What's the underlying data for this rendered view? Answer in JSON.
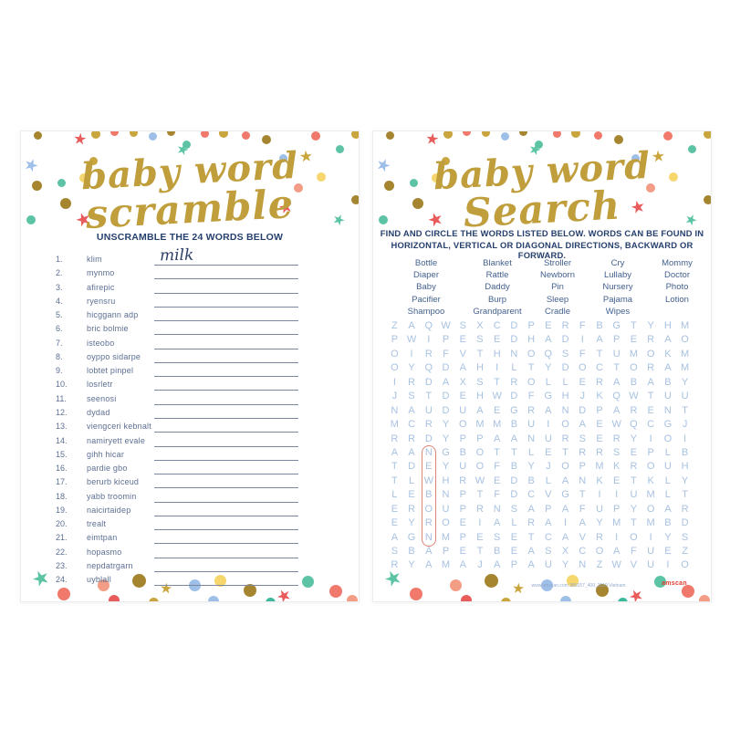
{
  "palette": {
    "gold": "#c9a53e",
    "gold2": "#a5852f",
    "coral": "#f0796b",
    "red": "#e85c5c",
    "salmon": "#f49d86",
    "blue": "#9dbfe8",
    "mint": "#5cc4a4",
    "teal": "#3cb99c",
    "yellow": "#f6d76d"
  },
  "colors": {
    "title_gold": "#bf9e3b",
    "heading_navy": "#26406e",
    "list_text": "#5d6f93",
    "grid_letter": "#a8c2e2",
    "circle_red": "#e0837b",
    "word_list": "#44618f",
    "answer_ink": "#2c3e66",
    "logo_red": "#e23b2e"
  },
  "scramble_card": {
    "title_line1": "baby word",
    "title_line2": "scramble",
    "instructions": "UNSCRAMBLE THE 24 WORDS BELOW",
    "items": [
      {
        "n": "1.",
        "word": "klim",
        "answer": "milk"
      },
      {
        "n": "2.",
        "word": "mynmo",
        "answer": ""
      },
      {
        "n": "3.",
        "word": "afirepic",
        "answer": ""
      },
      {
        "n": "4.",
        "word": "ryensru",
        "answer": ""
      },
      {
        "n": "5.",
        "word": "hicggann adp",
        "answer": ""
      },
      {
        "n": "6.",
        "word": "bric bolmie",
        "answer": ""
      },
      {
        "n": "7.",
        "word": "isteobo",
        "answer": ""
      },
      {
        "n": "8.",
        "word": "oyppo sidarpe",
        "answer": ""
      },
      {
        "n": "9.",
        "word": "lobtet pinpel",
        "answer": ""
      },
      {
        "n": "10.",
        "word": "losrletr",
        "answer": ""
      },
      {
        "n": "11.",
        "word": "seenosi",
        "answer": ""
      },
      {
        "n": "12.",
        "word": "dydad",
        "answer": ""
      },
      {
        "n": "13.",
        "word": "viengceri kebnalt",
        "answer": ""
      },
      {
        "n": "14.",
        "word": "namiryett evale",
        "answer": ""
      },
      {
        "n": "15.",
        "word": "gihh hicar",
        "answer": ""
      },
      {
        "n": "16.",
        "word": "pardie gbo",
        "answer": ""
      },
      {
        "n": "17.",
        "word": "berurb kiceud",
        "answer": ""
      },
      {
        "n": "18.",
        "word": "yabb troomin",
        "answer": ""
      },
      {
        "n": "19.",
        "word": "naicirtaidep",
        "answer": ""
      },
      {
        "n": "20.",
        "word": "trealt",
        "answer": ""
      },
      {
        "n": "21.",
        "word": "eimtpan",
        "answer": ""
      },
      {
        "n": "22.",
        "word": "hopasmo",
        "answer": ""
      },
      {
        "n": "23.",
        "word": "nepdatrgarn",
        "answer": ""
      },
      {
        "n": "24.",
        "word": "uyblall",
        "answer": ""
      }
    ]
  },
  "search_card": {
    "title_line1": "baby word",
    "title_line2": "Search",
    "instructions_line1": "FIND AND CIRCLE THE WORDS LISTED BELOW. WORDS CAN BE FOUND IN",
    "instructions_line2": "HORIZONTAL, VERTICAL OR DIAGONAL DIRECTIONS, BACKWARD OR FORWARD.",
    "word_columns": [
      [
        "Bottle",
        "Diaper",
        "Baby",
        "Pacifier",
        "Shampoo"
      ],
      [
        "Blanket",
        "Rattle",
        "Daddy",
        "Burp",
        "Grandparent"
      ],
      [
        "Stroller",
        "Newborn",
        "Pin",
        "Sleep",
        "Cradle"
      ],
      [
        "Cry",
        "Lullaby",
        "Nursery",
        "Pajama",
        "Wipes"
      ],
      [
        "Mommy",
        "Doctor",
        "Photo",
        "Lotion"
      ]
    ],
    "grid_rows": [
      "ZAQWSXCDPERFBGTYHM",
      "PWIPESEDHADIAPERAO",
      "OIRFVTHNOQSFTUMOKM",
      "OYQDAHILTYDOCTORAM",
      "IRDAXSTROLLERABABY",
      "JSTDEHWDFGHJKQWTUU",
      "NAUDUAEGRANDPARENT",
      "MCRYOMMBUIOAEWQCGJ",
      "RRDYPPAANURSERYIOI",
      "AANGBOTTLETRRSEPLB",
      "TDEYUOFBYJOPMKROUH",
      "TLWHRWEDBLANKETKLY",
      "LEBNPTFDCVGTIIUMLT",
      "EROUPRNSAPAFUPYOAR",
      "EYROEIALRAIAYMTMBD",
      "AGNMPESETCAVRIOIYS",
      "SBAPETBEASXCOAFUEZ",
      "RYAMAJAPAUYNZWVUIO"
    ],
    "circled_word": {
      "word": "NEWBORN",
      "col": 3,
      "row_start": 10,
      "row_end": 16
    },
    "footer_text": "www.amscan.com  380157_400_2019 Vietnam",
    "logo_text": "amscan"
  }
}
